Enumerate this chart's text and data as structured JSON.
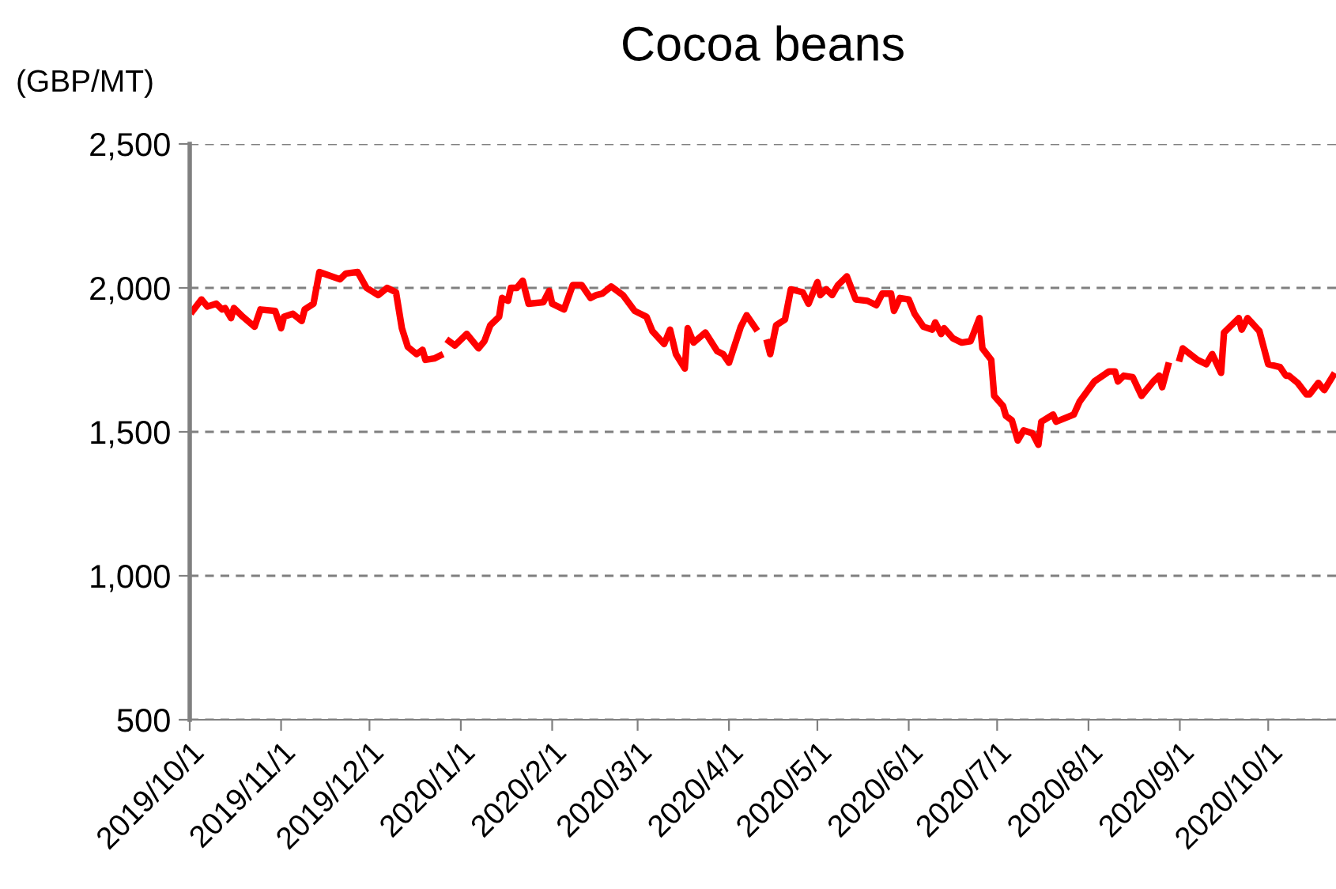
{
  "chart_data": {
    "type": "line",
    "title": "Cocoa beans",
    "ylabel": "(GBP/MT)",
    "xlim": [
      "2019-10-01",
      "2020-10-24"
    ],
    "xticks": [
      {
        "value": "2019-10-01",
        "label": "2019/10/1"
      },
      {
        "value": "2019-11-01",
        "label": "2019/11/1"
      },
      {
        "value": "2019-12-01",
        "label": "2019/12/1"
      },
      {
        "value": "2020-01-01",
        "label": "2020/1/1"
      },
      {
        "value": "2020-02-01",
        "label": "2020/2/1"
      },
      {
        "value": "2020-03-01",
        "label": "2020/3/1"
      },
      {
        "value": "2020-04-01",
        "label": "2020/4/1"
      },
      {
        "value": "2020-05-01",
        "label": "2020/5/1"
      },
      {
        "value": "2020-06-01",
        "label": "2020/6/1"
      },
      {
        "value": "2020-07-01",
        "label": "2020/7/1"
      },
      {
        "value": "2020-08-01",
        "label": "2020/8/1"
      },
      {
        "value": "2020-09-01",
        "label": "2020/9/1"
      },
      {
        "value": "2020-10-01",
        "label": "2020/10/1"
      }
    ],
    "ylim": [
      500,
      2500
    ],
    "yticks": [
      {
        "value": 500,
        "label": "500"
      },
      {
        "value": 1000,
        "label": "1,000"
      },
      {
        "value": 1500,
        "label": "1,500"
      },
      {
        "value": 2000,
        "label": "2,000"
      },
      {
        "value": 2500,
        "label": "2,500"
      }
    ],
    "grid": "y",
    "marker": "none",
    "line_style": "solid",
    "series": [
      {
        "color": "#ff0000",
        "x": [
          "2019-10-02",
          "2019-10-05",
          "2019-10-07",
          "2019-10-10",
          "2019-10-12",
          "2019-10-13",
          "2019-10-15",
          "2019-10-16",
          "2019-10-19",
          "2019-10-23",
          "2019-10-25",
          "2019-10-30",
          "2019-11-01",
          "2019-11-02",
          "2019-11-05",
          "2019-11-08",
          "2019-11-09",
          "2019-11-12",
          "2019-11-14",
          "2019-11-21",
          "2019-11-23",
          "2019-11-27",
          "2019-11-30",
          "2019-12-04",
          "2019-12-07",
          "2019-12-10",
          "2019-12-12",
          "2019-12-14",
          "2019-12-17",
          "2019-12-19",
          "2019-12-20",
          "2019-12-23",
          "2019-12-25",
          "2019-12-26",
          "2019-12-28",
          "2019-12-30",
          "2020-01-03",
          "2020-01-07",
          "2020-01-09",
          "2020-01-11",
          "2020-01-14",
          "2020-01-15",
          "2020-01-17",
          "2020-01-18",
          "2020-01-20",
          "2020-01-22",
          "2020-01-24",
          "2020-01-29",
          "2020-01-31",
          "2020-02-01",
          "2020-02-05",
          "2020-02-08",
          "2020-02-11",
          "2020-02-14",
          "2020-02-16",
          "2020-02-18",
          "2020-02-21",
          "2020-02-25",
          "2020-02-29",
          "2020-03-04",
          "2020-03-06",
          "2020-03-10",
          "2020-03-12",
          "2020-03-14",
          "2020-03-17",
          "2020-03-18",
          "2020-03-20",
          "2020-03-24",
          "2020-03-28",
          "2020-03-30",
          "2020-04-01",
          "2020-04-05",
          "2020-04-07",
          "2020-04-10",
          "2020-04-12",
          "2020-04-14",
          "2020-04-15",
          "2020-04-17",
          "2020-04-20",
          "2020-04-22",
          "2020-04-26",
          "2020-04-28",
          "2020-05-01",
          "2020-05-02",
          "2020-05-04",
          "2020-05-06",
          "2020-05-08",
          "2020-05-11",
          "2020-05-14",
          "2020-05-18",
          "2020-05-21",
          "2020-05-23",
          "2020-05-26",
          "2020-05-27",
          "2020-05-29",
          "2020-06-01",
          "2020-06-03",
          "2020-06-06",
          "2020-06-09",
          "2020-06-10",
          "2020-06-12",
          "2020-06-13",
          "2020-06-16",
          "2020-06-19",
          "2020-06-22",
          "2020-06-25",
          "2020-06-26",
          "2020-06-29",
          "2020-06-30",
          "2020-07-03",
          "2020-07-04",
          "2020-07-06",
          "2020-07-08",
          "2020-07-10",
          "2020-07-13",
          "2020-07-15",
          "2020-07-16",
          "2020-07-20",
          "2020-07-21",
          "2020-07-27",
          "2020-07-29",
          "2020-08-03",
          "2020-08-08",
          "2020-08-10",
          "2020-08-11",
          "2020-08-13",
          "2020-08-16",
          "2020-08-19",
          "2020-08-23",
          "2020-08-25",
          "2020-08-26",
          "2020-08-28",
          "2020-08-30",
          "2020-09-01",
          "2020-09-02",
          "2020-09-07",
          "2020-09-10",
          "2020-09-12",
          "2020-09-15",
          "2020-09-16",
          "2020-09-20",
          "2020-09-21",
          "2020-09-22",
          "2020-09-24",
          "2020-09-28",
          "2020-10-01",
          "2020-10-05",
          "2020-10-07",
          "2020-10-08",
          "2020-10-11",
          "2020-10-14",
          "2020-10-15",
          "2020-10-18",
          "2020-10-20",
          "2020-10-23"
        ],
        "values": [
          1920,
          1960,
          1935,
          1945,
          1925,
          1930,
          1895,
          1930,
          1900,
          1865,
          1925,
          1920,
          1860,
          1900,
          1910,
          1885,
          1925,
          1945,
          2055,
          2030,
          2050,
          2055,
          2000,
          1975,
          2000,
          1985,
          1860,
          1795,
          1770,
          1785,
          1750,
          1755,
          1765,
          null,
          1815,
          1800,
          1840,
          1790,
          1815,
          1870,
          1900,
          1965,
          1955,
          2000,
          2000,
          2025,
          1945,
          1950,
          1990,
          1945,
          1925,
          2010,
          2010,
          1965,
          1975,
          1980,
          2005,
          1975,
          1920,
          1900,
          1850,
          1805,
          1855,
          1770,
          1720,
          1860,
          1810,
          1845,
          1780,
          1770,
          1740,
          1865,
          1905,
          1860,
          null,
          1810,
          1770,
          1870,
          1890,
          1995,
          1985,
          1945,
          2020,
          1975,
          1995,
          1975,
          2010,
          2040,
          1960,
          1955,
          1940,
          1980,
          1980,
          1920,
          1965,
          1960,
          1910,
          1865,
          1855,
          1880,
          1840,
          1860,
          1825,
          1810,
          1815,
          1895,
          1790,
          1750,
          1625,
          1590,
          1555,
          1540,
          1470,
          1505,
          1495,
          1455,
          1535,
          1560,
          1535,
          1560,
          1605,
          1675,
          1710,
          1710,
          1675,
          1695,
          1690,
          1625,
          1675,
          1695,
          1655,
          1730,
          null,
          1755,
          1790,
          1750,
          1735,
          1770,
          1705,
          1845,
          1885,
          1895,
          1855,
          1895,
          1850,
          1735,
          1725,
          1695,
          1695,
          1670,
          1630,
          1630,
          1670,
          1645,
          1695
        ]
      }
    ]
  }
}
